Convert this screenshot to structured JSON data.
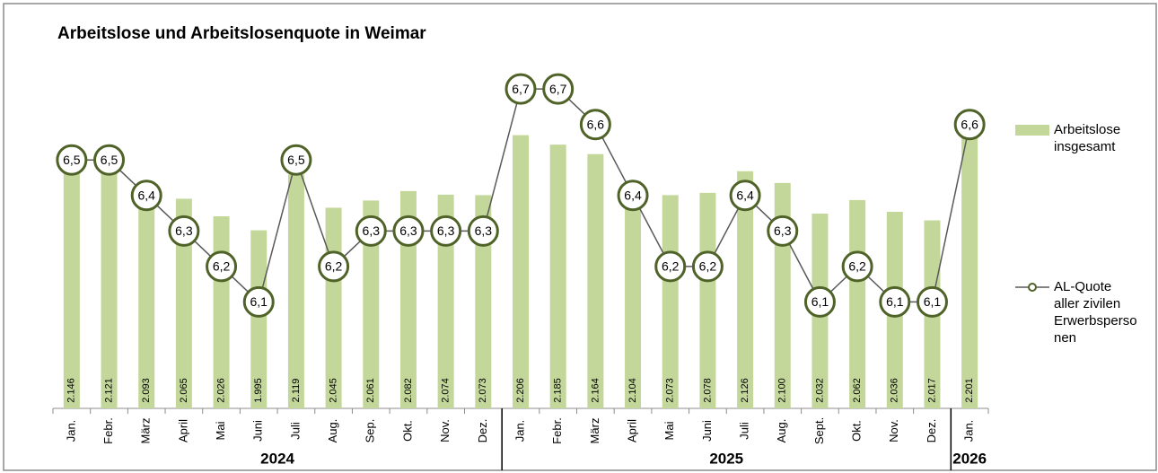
{
  "chart_data": {
    "type": "bar-line",
    "title": "Arbeitslose und Arbeitslosenquote in Weimar",
    "category_groups": [
      {
        "name": "2024",
        "categories": [
          "Jan.",
          "Febr.",
          "März",
          "April",
          "Mai",
          "Juni",
          "Juli",
          "Aug.",
          "Sep.",
          "Okt.",
          "Nov.",
          "Dez."
        ]
      },
      {
        "name": "2025",
        "categories": [
          "Jan.",
          "Febr.",
          "März",
          "April",
          "Mai",
          "Juni",
          "Juli",
          "Aug.",
          "Sept.",
          "Okt.",
          "Nov.",
          "Dez."
        ]
      },
      {
        "name": "2026",
        "categories": [
          "Jan."
        ]
      }
    ],
    "series": [
      {
        "name": "Arbeitslose insgesamt",
        "type": "bar",
        "color": "#c4d79b",
        "values": [
          2146,
          2121,
          2093,
          2065,
          2026,
          1995,
          2119,
          2045,
          2061,
          2082,
          2074,
          2073,
          2206,
          2185,
          2164,
          2104,
          2073,
          2078,
          2126,
          2100,
          2032,
          2062,
          2036,
          2017,
          2201
        ],
        "value_labels": [
          "2.146",
          "2.121",
          "2.093",
          "2.065",
          "2.026",
          "1.995",
          "2.119",
          "2.045",
          "2.061",
          "2.082",
          "2.074",
          "2.073",
          "2.206",
          "2.185",
          "2.164",
          "2.104",
          "2.073",
          "2.078",
          "2.126",
          "2.100",
          "2.032",
          "2.062",
          "2.036",
          "2.017",
          "2.201"
        ]
      },
      {
        "name": "AL-Quote aller zivilen Erwerbspersonen",
        "type": "line",
        "axis": "y2",
        "color": "#595959",
        "marker_color": "#4f6228",
        "values": [
          6.5,
          6.5,
          6.4,
          6.3,
          6.2,
          6.1,
          6.5,
          6.2,
          6.3,
          6.3,
          6.3,
          6.3,
          6.7,
          6.7,
          6.6,
          6.4,
          6.2,
          6.2,
          6.4,
          6.3,
          6.1,
          6.2,
          6.1,
          6.1,
          6.6
        ],
        "value_labels": [
          "6,5",
          "6,5",
          "6,4",
          "6,3",
          "6,2",
          "6,1",
          "6,5",
          "6,2",
          "6,3",
          "6,3",
          "6,3",
          "6,3",
          "6,7",
          "6,7",
          "6,6",
          "6,4",
          "6,2",
          "6,2",
          "6,4",
          "6,3",
          "6,1",
          "6,2",
          "6,1",
          "6,1",
          "6,6"
        ]
      }
    ],
    "ylim": [
      1600,
      2450
    ],
    "y2lim": [
      5.8,
      6.88
    ],
    "legend": "right"
  }
}
